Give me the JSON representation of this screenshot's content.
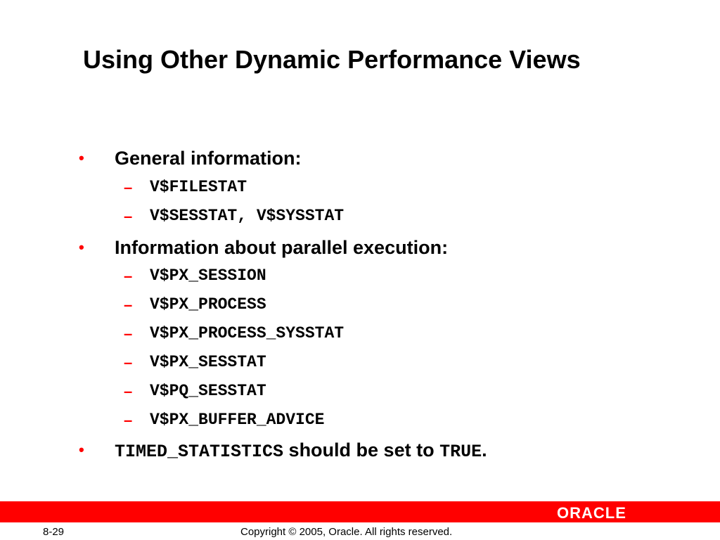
{
  "title": "Using Other Dynamic Performance Views",
  "bullets": [
    {
      "text": "General information:",
      "subs": [
        "V$FILESTAT",
        "V$SESSTAT, V$SYSSTAT"
      ]
    },
    {
      "text": "Information about parallel execution:",
      "subs": [
        "V$PX_SESSION",
        "V$PX_PROCESS",
        "V$PX_PROCESS_SYSSTAT",
        "V$PX_SESSTAT",
        "V$PQ_SESSTAT",
        "V$PX_BUFFER_ADVICE"
      ]
    },
    {
      "code1": "TIMED_STATISTICS",
      "text_mid": " should be set to ",
      "code2": "TRUE",
      "text_end": "."
    }
  ],
  "footer": {
    "page": "8-29",
    "copyright": "Copyright © 2005, Oracle. All rights reserved.",
    "logo": "ORACLE"
  },
  "colors": {
    "accent": "#ff0000"
  }
}
